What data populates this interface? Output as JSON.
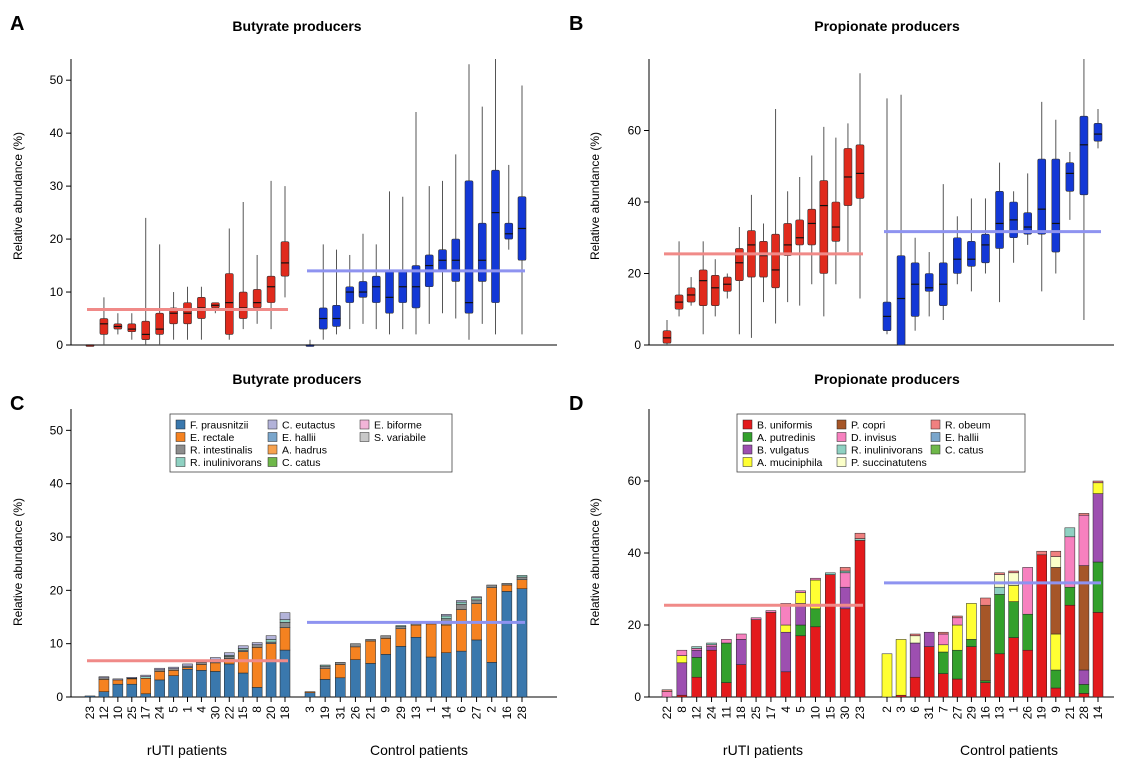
{
  "colors": {
    "rUTI": "#e02a1c",
    "control": "#1338d6",
    "rUTI_mean": "#f08a88",
    "control_mean": "#8e93f0",
    "butyrate_taxa": [
      "#3a78ad",
      "#f58220",
      "#8c8c8c",
      "#8fd1c2",
      "#b3b3d9",
      "#7aa6cc",
      "#f7a24f",
      "#6fb84a",
      "#f2b4d8",
      "#c8c8c8"
    ],
    "propionate_taxa": [
      "#e31a1c",
      "#33a02c",
      "#9d4fb0",
      "#ffff33",
      "#a65628",
      "#f781bf",
      "#8fd1c2",
      "#fbffc9",
      "#f08080",
      "#7aa6cc",
      "#6fb84a"
    ]
  },
  "panel_letters": {
    "A": "A",
    "B": "B",
    "C": "C",
    "D": "D"
  },
  "group_labels": {
    "rUTI": "rUTI patients",
    "control": "Control patients"
  },
  "chart_data": [
    {
      "panel": "A",
      "type": "box",
      "title": "Butyrate producers",
      "ylabel": "Relative abundance (%)",
      "ylim": [
        0,
        54
      ],
      "yticks": [
        0,
        10,
        20,
        30,
        40,
        50
      ],
      "group_means": {
        "rUTI": 6.7,
        "control": 14
      },
      "groups": [
        {
          "group": "rUTI",
          "boxes": [
            [
              0,
              0,
              0,
              0,
              0
            ],
            [
              0,
              2,
              4,
              5,
              9
            ],
            [
              2,
              3,
              3.5,
              4,
              6
            ],
            [
              1,
              2.5,
              3,
              4,
              6
            ],
            [
              0,
              1,
              2,
              4.5,
              24
            ],
            [
              0,
              2,
              3,
              6,
              19
            ],
            [
              1,
              4,
              6,
              7,
              10
            ],
            [
              1,
              4,
              6,
              8,
              11
            ],
            [
              1,
              5,
              7,
              9,
              11
            ],
            [
              6,
              7,
              7.5,
              8,
              8
            ],
            [
              1,
              2,
              8,
              13.5,
              22
            ],
            [
              3,
              5,
              7,
              10,
              27
            ],
            [
              4,
              7,
              8,
              10.5,
              17
            ],
            [
              3,
              8,
              11,
              13,
              31
            ],
            [
              9,
              13,
              15.5,
              19.5,
              30
            ]
          ]
        },
        {
          "group": "control",
          "boxes": [
            [
              0,
              0,
              0,
              0,
              1
            ],
            [
              1,
              3,
              5,
              7,
              19
            ],
            [
              2,
              3.5,
              5,
              7.5,
              18
            ],
            [
              3,
              8,
              10,
              11,
              17
            ],
            [
              4,
              9,
              10,
              12,
              21
            ],
            [
              3,
              8,
              11,
              13,
              19
            ],
            [
              2,
              6,
              9,
              14,
              29
            ],
            [
              3,
              8,
              11,
              14,
              28
            ],
            [
              2,
              7,
              11,
              15,
              44
            ],
            [
              4,
              11,
              15,
              17,
              30
            ],
            [
              6,
              14,
              16,
              18,
              31
            ],
            [
              5,
              12,
              16,
              20,
              36
            ],
            [
              1,
              6,
              8,
              31,
              53
            ],
            [
              4,
              12,
              16,
              23,
              45
            ],
            [
              2,
              8,
              25,
              33,
              54
            ],
            [
              18,
              20,
              21,
              23,
              34
            ],
            [
              2,
              16,
              22,
              28,
              49
            ]
          ]
        }
      ]
    },
    {
      "panel": "B",
      "type": "box",
      "title": "Propionate producers",
      "ylabel": "Relative abundance (%)",
      "ylim": [
        0,
        80
      ],
      "yticks": [
        0,
        20,
        40,
        60
      ],
      "group_means": {
        "rUTI": 25.5,
        "control": 31.7
      },
      "groups": [
        {
          "group": "rUTI",
          "boxes": [
            [
              0,
              0.5,
              2,
              4,
              7
            ],
            [
              8,
              10,
              12,
              14,
              29
            ],
            [
              11,
              12,
              14,
              16,
              19
            ],
            [
              3,
              11,
              18,
              21,
              29
            ],
            [
              8,
              11,
              16,
              19.5,
              24
            ],
            [
              13,
              15,
              17,
              19,
              20
            ],
            [
              3,
              18,
              23,
              27,
              33
            ],
            [
              2,
              19,
              28,
              32,
              42
            ],
            [
              12,
              19,
              25,
              29,
              34
            ],
            [
              6,
              16,
              21,
              31,
              66
            ],
            [
              12,
              25,
              28,
              34,
              43
            ],
            [
              11,
              28,
              30,
              35,
              47
            ],
            [
              17,
              28,
              34,
              38,
              53
            ],
            [
              8,
              20,
              39,
              46,
              61
            ],
            [
              17,
              29,
              33,
              40,
              58
            ],
            [
              26,
              39,
              47,
              55,
              62
            ],
            [
              13,
              41,
              48,
              56,
              76
            ]
          ]
        },
        {
          "group": "control",
          "boxes": [
            [
              3,
              4,
              8,
              12,
              69
            ],
            [
              0,
              0,
              13,
              25,
              70
            ],
            [
              4,
              8,
              17,
              23,
              30
            ],
            [
              8,
              15,
              16,
              20,
              26
            ],
            [
              7,
              11,
              17,
              23,
              45
            ],
            [
              17,
              20,
              24,
              30,
              36
            ],
            [
              15,
              22,
              24,
              29,
              41
            ],
            [
              20,
              23,
              28,
              31,
              41
            ],
            [
              12,
              27,
              34,
              43,
              51
            ],
            [
              23,
              30,
              35,
              40,
              43
            ],
            [
              28,
              31,
              33,
              37,
              48
            ],
            [
              15,
              31,
              38,
              52,
              68
            ],
            [
              20,
              26,
              34,
              52,
              63
            ],
            [
              35,
              43,
              48,
              51,
              54
            ],
            [
              7,
              42,
              56,
              64,
              80
            ],
            [
              55,
              57,
              59,
              62,
              66
            ]
          ]
        }
      ]
    },
    {
      "panel": "C",
      "type": "stacked-bar",
      "title": "Butyrate producers",
      "ylabel": "Relative abundance (%)",
      "ylim": [
        0,
        54
      ],
      "yticks": [
        0,
        10,
        20,
        30,
        40,
        50
      ],
      "group_means": {
        "rUTI": 6.8,
        "control": 14
      },
      "legend": [
        "F. prausnitzii",
        "E. rectale",
        "R. intestinalis",
        "R. inulinivorans",
        "C. eutactus",
        "E. hallii",
        "A. hadrus",
        "C. catus",
        "E. biforme",
        "S. variabile"
      ],
      "categories": {
        "rUTI": [
          "23",
          "12",
          "10",
          "25",
          "17",
          "24",
          "5",
          "1",
          "4",
          "30",
          "22",
          "15",
          "8",
          "20",
          "18"
        ],
        "control": [
          "3",
          "19",
          "31",
          "26",
          "21",
          "9",
          "29",
          "13",
          "1",
          "14",
          "6",
          "27",
          "2",
          "16",
          "28"
        ]
      },
      "stacks": {
        "rUTI": [
          [
            0.2
          ],
          [
            1.0,
            2.3,
            0.3,
            0,
            0.2
          ],
          [
            2.4,
            0.8,
            0,
            0,
            0.2
          ],
          [
            2.4,
            1.0,
            0.1,
            0,
            0.2
          ],
          [
            0.6,
            2.9,
            0,
            0.3,
            0.3
          ],
          [
            3.2,
            1.6,
            0.3,
            0,
            0.3
          ],
          [
            4.0,
            1.0,
            0.3,
            0,
            0.3
          ],
          [
            5.2,
            0.3,
            0.3,
            0,
            0.4
          ],
          [
            5.0,
            1.1,
            0.4,
            0,
            0.3
          ],
          [
            4.8,
            1.6,
            0.6,
            0,
            0.4
          ],
          [
            6.2,
            1.0,
            0.4,
            0.2,
            0.5
          ],
          [
            4.5,
            4.0,
            0.3,
            0.3,
            0.5
          ],
          [
            1.8,
            7.5,
            0.5,
            0,
            0.4
          ],
          [
            7.0,
            3.0,
            0.3,
            0.5,
            0.7
          ],
          [
            8.8,
            4.2,
            1.0,
            0.5,
            1.3
          ]
        ],
        "control": [
          [
            0.8,
            0.2
          ],
          [
            3.3,
            2.0,
            0.5,
            0.2
          ],
          [
            3.6,
            2.5,
            0.4,
            0
          ],
          [
            7.0,
            2.4,
            0.6,
            0
          ],
          [
            6.3,
            4.2,
            0.3,
            0
          ],
          [
            8.0,
            3.0,
            0.5,
            0
          ],
          [
            9.5,
            3.3,
            0.4,
            0.2
          ],
          [
            11.2,
            2.3,
            0.5,
            0
          ],
          [
            7.5,
            6.2,
            0.4,
            0
          ],
          [
            8.3,
            5.2,
            1.2,
            0.5,
            0.3
          ],
          [
            8.6,
            7.8,
            1.0,
            0.4,
            0.3
          ],
          [
            10.7,
            6.8,
            0.7,
            0.4,
            0.2
          ],
          [
            6.5,
            14.0,
            0.5,
            0
          ],
          [
            19.8,
            1.2,
            0.3,
            0
          ],
          [
            20.3,
            1.7,
            0.5,
            0.3
          ]
        ]
      }
    },
    {
      "panel": "D",
      "type": "stacked-bar",
      "title": "Propionate producers",
      "ylabel": "Relative abundance (%)",
      "ylim": [
        0,
        80
      ],
      "yticks": [
        0,
        20,
        40,
        60
      ],
      "group_means": {
        "rUTI": 25.5,
        "control": 31.7
      },
      "legend": [
        "B. uniformis",
        "A. putredinis",
        "B. vulgatus",
        "A. muciniphila",
        "P. copri",
        "D. invisus",
        "R. inulinivorans",
        "P. succinatutens",
        "R. obeum",
        "E. hallii",
        "C. catus"
      ],
      "categories": {
        "rUTI": [
          "22",
          "8",
          "12",
          "24",
          "11",
          "18",
          "25",
          "17",
          "4",
          "5",
          "10",
          "15",
          "30",
          "23"
        ],
        "control": [
          "2",
          "3",
          "6",
          "31",
          "7",
          "27",
          "29",
          "16",
          "13",
          "1",
          "26",
          "19",
          "9",
          "21",
          "28",
          "14"
        ]
      },
      "stacks": {
        "rUTI": [
          [
            0,
            0,
            0,
            0,
            0,
            1.5,
            0,
            0,
            0.5
          ],
          [
            0.5,
            0,
            9,
            2,
            0,
            1.5
          ],
          [
            5.5,
            5.5,
            2,
            0,
            0,
            0.5,
            0.5
          ],
          [
            13,
            0,
            1,
            0,
            0,
            0.5,
            0.5
          ],
          [
            4,
            11,
            0,
            0,
            0,
            1
          ],
          [
            9,
            0,
            7,
            0,
            0,
            1.5
          ],
          [
            21.5,
            0,
            0,
            0,
            0,
            0.5
          ],
          [
            23.5,
            0,
            0,
            0,
            0,
            0.5
          ],
          [
            7,
            0,
            11,
            2,
            0,
            6
          ],
          [
            17,
            3,
            6,
            3,
            0,
            0.5
          ],
          [
            19.5,
            5,
            0,
            8,
            0,
            0.5
          ],
          [
            34,
            0,
            0,
            0,
            0,
            0,
            0.5
          ],
          [
            24.5,
            0,
            6,
            0,
            0,
            4,
            0.5,
            0,
            1
          ],
          [
            43.5,
            0,
            0,
            0,
            0,
            0,
            0.5,
            0,
            1.5
          ],
          [
            33.5,
            0,
            10,
            4,
            0,
            0,
            0,
            0,
            0
          ]
        ],
        "control": [
          [
            0,
            0,
            0,
            12,
            0,
            0,
            0,
            0
          ],
          [
            0.5,
            0,
            0,
            15.5
          ],
          [
            5.5,
            0,
            9.5,
            0,
            0,
            0,
            0,
            2,
            0.5
          ],
          [
            14,
            0,
            4,
            0,
            0
          ],
          [
            6.5,
            6,
            0,
            2,
            0,
            3,
            0,
            0,
            0.5
          ],
          [
            5,
            8,
            0,
            7,
            0,
            2,
            0,
            0,
            0.5
          ],
          [
            14,
            2,
            0,
            10,
            0,
            0,
            0,
            0,
            0
          ],
          [
            4,
            0.5,
            0,
            0,
            21,
            0,
            0,
            0,
            2
          ],
          [
            12,
            16.5,
            0,
            0,
            0,
            0,
            2,
            3.5,
            0.5
          ],
          [
            16.5,
            10,
            0,
            4.5,
            0,
            0,
            0,
            3.5,
            0.5
          ],
          [
            13,
            10,
            0,
            0,
            0,
            13,
            0,
            0
          ],
          [
            39.5,
            0,
            0,
            0,
            0,
            0,
            0,
            0,
            1
          ],
          [
            2.5,
            5,
            0,
            10,
            18.5,
            0,
            0,
            3,
            1.5
          ],
          [
            25.5,
            5,
            0,
            0,
            0,
            14,
            2.5,
            0,
            0
          ],
          [
            1,
            2.5,
            4,
            0,
            29,
            14,
            0,
            0,
            0.5
          ],
          [
            23.5,
            14,
            19,
            3,
            0,
            0,
            0,
            0,
            0.5
          ]
        ]
      }
    }
  ]
}
